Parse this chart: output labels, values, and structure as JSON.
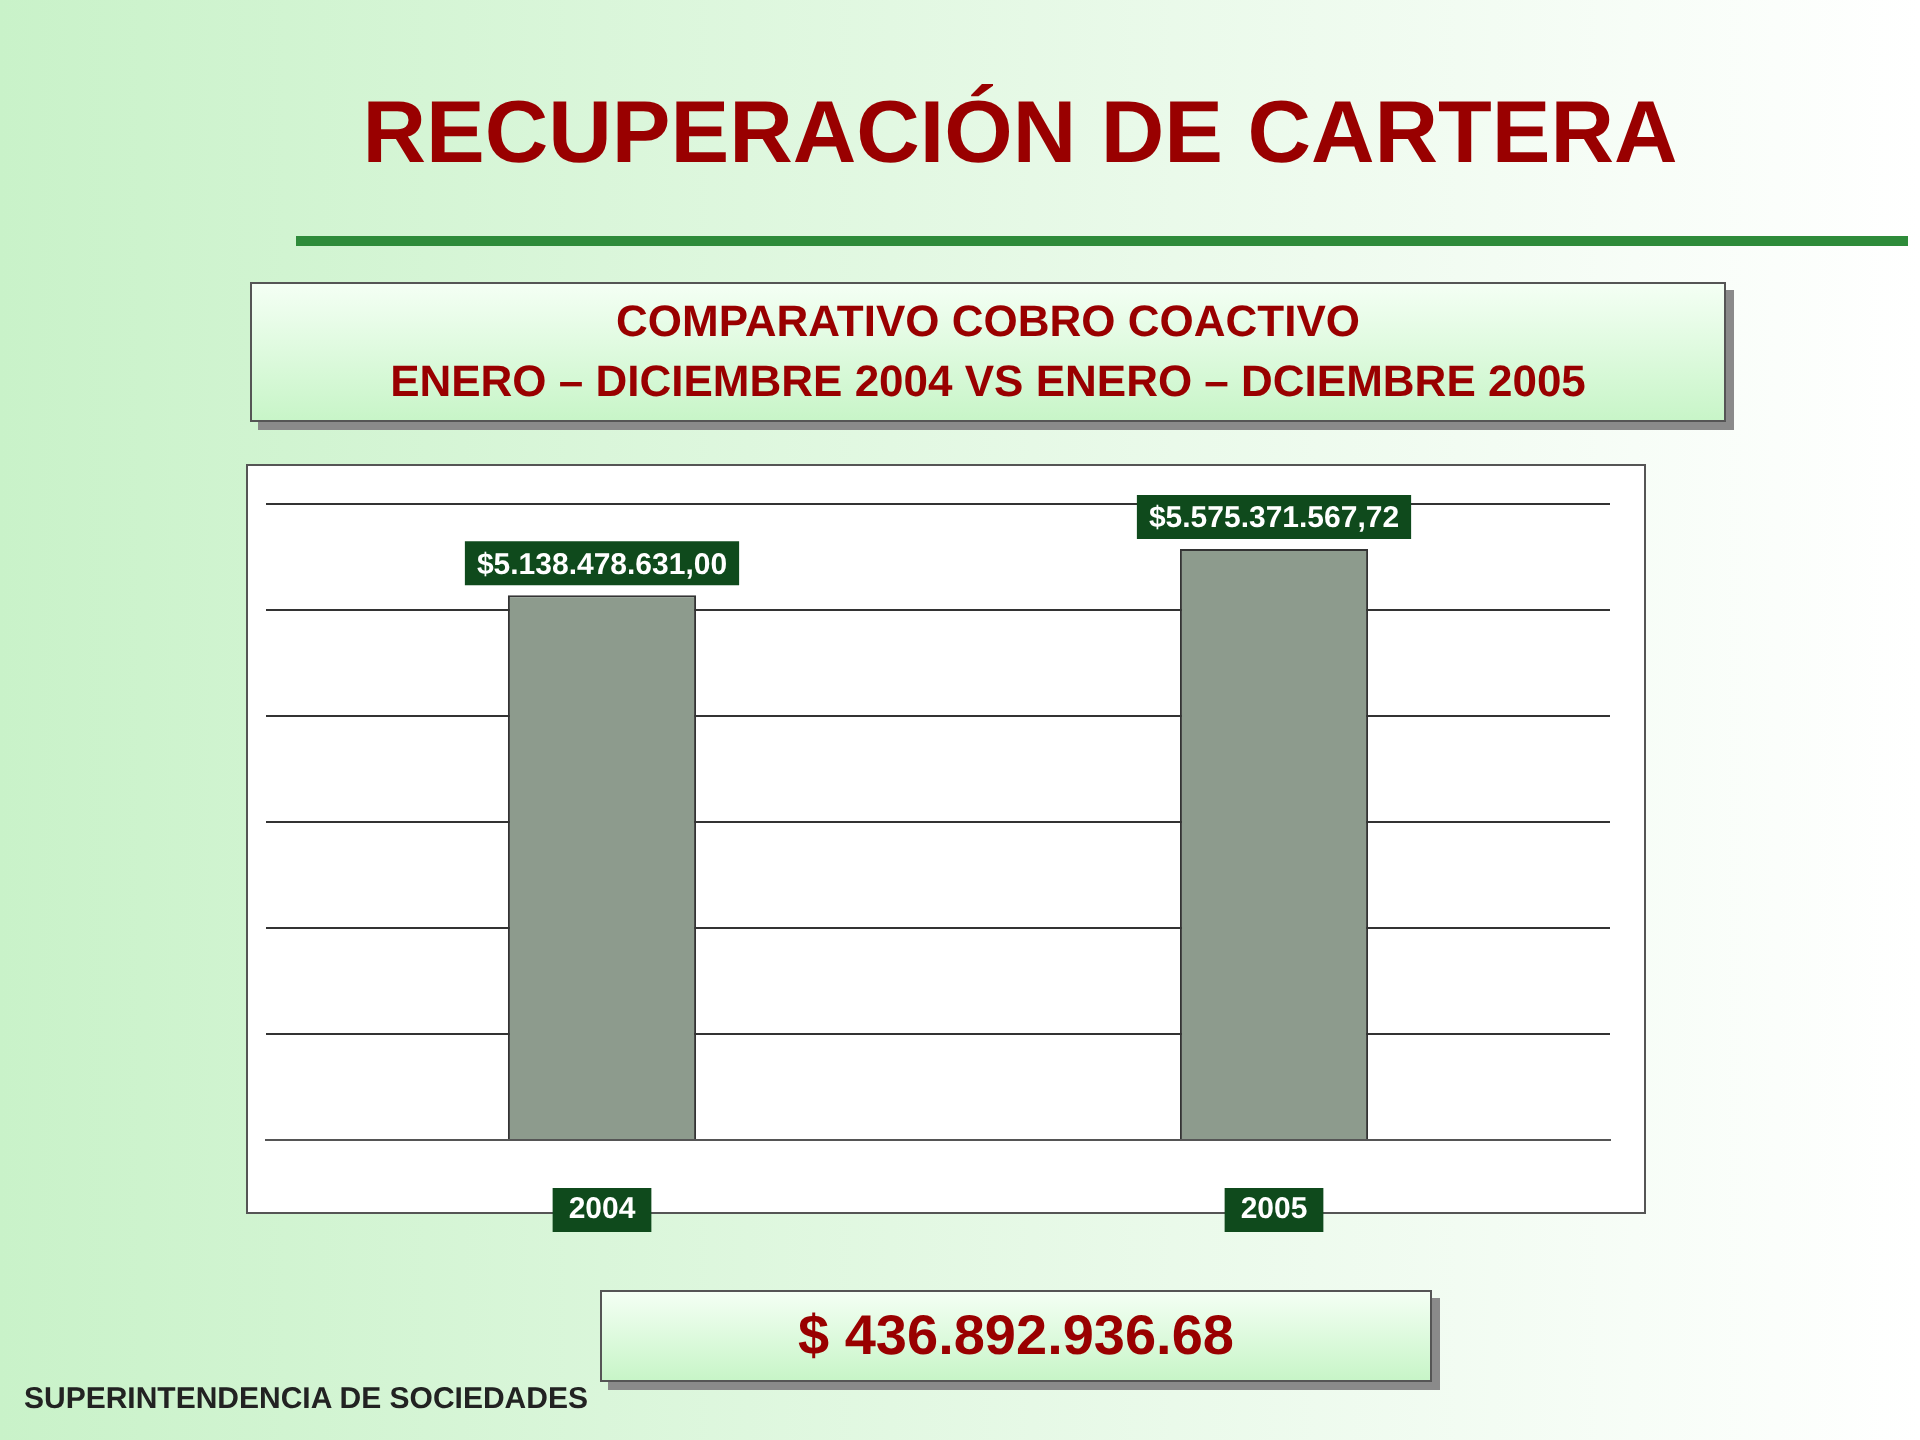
{
  "chart_data": {
    "type": "bar",
    "title": "RECUPERACIÓN DE CARTERA",
    "subtitle": "COMPARATIVO COBRO COACTIVO\nENERO – DICIEMBRE 2004 VS ENERO – DCIEMBRE 2005",
    "categories": [
      "2004",
      "2005"
    ],
    "values": [
      5138478631,
      5575371567.72
    ],
    "value_labels": [
      "$5.138.478.631,00",
      "$5.575.371.567,72"
    ],
    "color": "#8d9b8d",
    "ylim": [
      0,
      6000000000
    ],
    "yticks": [
      {
        "value": 0,
        "label": null
      },
      {
        "value": 1000000000,
        "label": null
      },
      {
        "value": 2000000000,
        "label": null
      },
      {
        "value": 3000000000,
        "label": null
      },
      {
        "value": 4000000000,
        "label": null
      },
      {
        "value": 5000000000,
        "label": null
      },
      {
        "value": 6000000000,
        "label": null
      }
    ],
    "grid": "y",
    "annotations": [
      "$ 436.892.936.68",
      "SUPERINTENDENCIA DE SOCIEDADES"
    ]
  }
}
